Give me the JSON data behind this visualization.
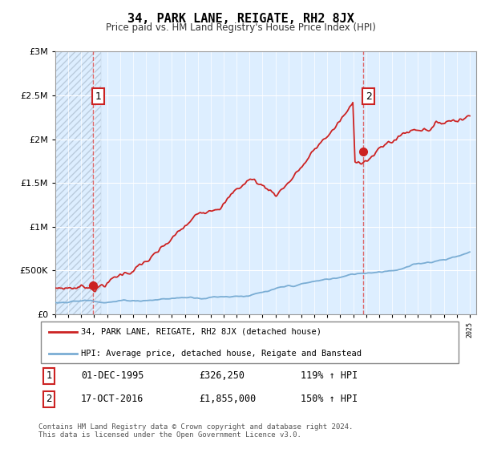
{
  "title": "34, PARK LANE, REIGATE, RH2 8JX",
  "subtitle": "Price paid vs. HM Land Registry's House Price Index (HPI)",
  "legend_line1": "34, PARK LANE, REIGATE, RH2 8JX (detached house)",
  "legend_line2": "HPI: Average price, detached house, Reigate and Banstead",
  "footer": "Contains HM Land Registry data © Crown copyright and database right 2024.\nThis data is licensed under the Open Government Licence v3.0.",
  "point1_date": "01-DEC-1995",
  "point1_price": "£326,250",
  "point1_hpi": "119% ↑ HPI",
  "point1_x": 1995.92,
  "point1_y": 326250,
  "point2_date": "17-OCT-2016",
  "point2_price": "£1,855,000",
  "point2_hpi": "150% ↑ HPI",
  "point2_x": 2016.79,
  "point2_y": 1855000,
  "ylim": [
    0,
    3000000
  ],
  "xlim_left": 1993.0,
  "xlim_right": 2025.5,
  "red_color": "#cc2222",
  "blue_color": "#7aadd4",
  "bg_color": "#ddeeff",
  "hatch_color": "#bbccdd",
  "vline_color": "#dd4444",
  "grid_color": "#bbbbcc",
  "box_edge_color": "#cc2222"
}
